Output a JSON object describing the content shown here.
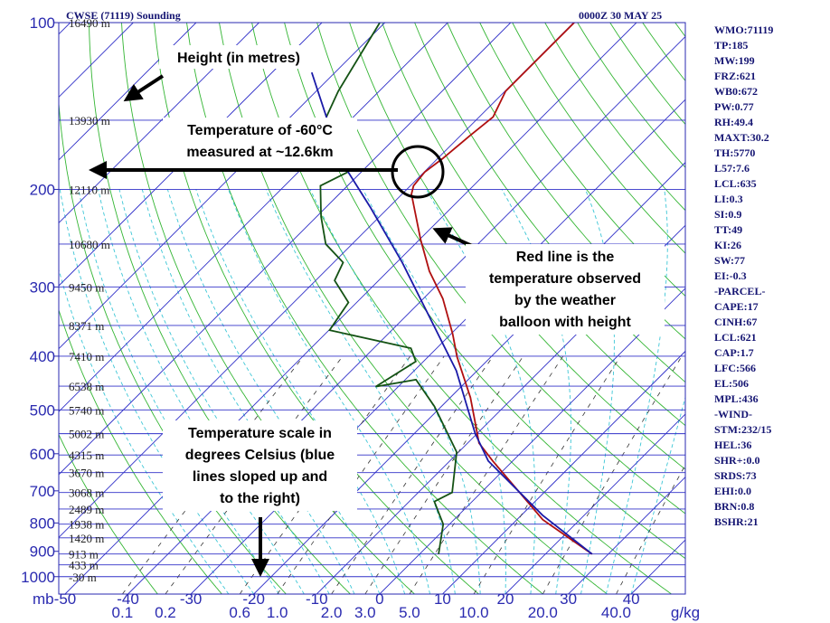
{
  "chart_data": {
    "type": "skew-t",
    "title": "CWSE (71119) Sounding",
    "date": "0000Z 30 MAY 25",
    "ylabel": "mb",
    "mixing_ratio_unit": "g/kg",
    "log_y": true,
    "skew": true,
    "xlim": [
      -51,
      48.6
    ],
    "ylim": [
      1075,
      100
    ],
    "xticks": [
      -50,
      -40,
      -30,
      -20,
      -10,
      0,
      10,
      20,
      30,
      40
    ],
    "yticks": [
      100,
      200,
      300,
      400,
      500,
      600,
      700,
      800,
      900,
      1000
    ],
    "mixing_ratio_ticks": [
      {
        "value": 0.1,
        "label": "0.1"
      },
      {
        "value": 0.2,
        "label": "0.2"
      },
      {
        "value": 0.6,
        "label": "0.6"
      },
      {
        "value": 1,
        "label": "1.0"
      },
      {
        "value": 2,
        "label": "2.0"
      },
      {
        "value": 3,
        "label": "3.0"
      },
      {
        "value": 5,
        "label": "5.0"
      },
      {
        "value": 10,
        "label": "10.0"
      },
      {
        "value": 20,
        "label": "20.0"
      },
      {
        "value": 40,
        "label": "40.0"
      }
    ],
    "height_ticks": [
      {
        "value": 100,
        "label": "16490 m"
      },
      {
        "value": 150,
        "label": "13930 m"
      },
      {
        "value": 200,
        "label": "12110 m"
      },
      {
        "value": 251,
        "label": "10680 m"
      },
      {
        "value": 300,
        "label": "9450 m"
      },
      {
        "value": 352,
        "label": "8371 m"
      },
      {
        "value": 400,
        "label": "7410 m"
      },
      {
        "value": 453,
        "label": "6538 m"
      },
      {
        "value": 500,
        "label": "5740 m"
      },
      {
        "value": 552,
        "label": "5002 m"
      },
      {
        "value": 603,
        "label": "4315 m"
      },
      {
        "value": 649,
        "label": "3670 m"
      },
      {
        "value": 705,
        "label": "3068 m"
      },
      {
        "value": 755,
        "label": "2489 m"
      },
      {
        "value": 804,
        "label": "1938 m"
      },
      {
        "value": 851,
        "label": "1420 m"
      },
      {
        "value": 910,
        "label": "913 m"
      },
      {
        "value": 952,
        "label": "433 m"
      },
      {
        "value": 1000,
        "label": "-30 m"
      }
    ],
    "series": [
      {
        "color": "#b01010",
        "x": [
          27.4,
          14.1,
          -3.2,
          -8.2,
          -12.5,
          -16.8,
          -25.4,
          -29.7,
          -36.9,
          -43.4,
          -49.9,
          -54.2,
          -58.5,
          -59.5,
          -59.9,
          -59.2,
          -58.5,
          -57.8,
          -59.9,
          -59.9,
          -59.9,
          -59.9
        ],
        "values": [
          910,
          789,
          618,
          574,
          522,
          475,
          401,
          365,
          315,
          281,
          246,
          224,
          204,
          197,
          186,
          176,
          160,
          148,
          133,
          130,
          114,
          100
        ]
      },
      {
        "color": "#145214",
        "x": [
          3.0,
          -1.0,
          -6.0,
          -4.6,
          -10.3,
          -21.1,
          -28.3,
          -33.6,
          -31.2,
          -34.1,
          -49.9,
          -51.3,
          -57.0,
          -58.5,
          -64.2,
          -69.3,
          -74.3,
          -72.1,
          -78.6,
          -84.3,
          -86.5,
          -90.8
        ],
        "values": [
          910,
          804,
          732,
          705,
          596,
          493,
          441,
          454,
          409,
          387,
          359,
          320,
          292,
          271,
          251,
          224,
          197,
          186,
          166,
          148,
          133,
          100
        ]
      },
      {
        "color": "#1a1aa8",
        "x": [
          27.4,
          13.4,
          -3.9,
          -10.3,
          -23.3,
          -34.1,
          -49.1,
          -62.8,
          -72.1,
          -84.3,
          -93.7
        ],
        "values": [
          910,
          775,
          618,
          552,
          425,
          352,
          271,
          216,
          186,
          148,
          123
        ]
      }
    ]
  },
  "station_info": [
    "WMO:71119",
    "TP:185",
    "MW:199",
    "FRZ:621",
    "WB0:672",
    "PW:0.77",
    "RH:49.4",
    "MAXT:30.2",
    "TH:5770",
    "L57:7.6",
    "LCL:635",
    "LI:0.3",
    "SI:0.9",
    "TT:49",
    "KI:26",
    "SW:77",
    "EI:-0.3",
    "-PARCEL-",
    "CAPE:17",
    "CINH:67",
    "LCL:621",
    "CAP:1.7",
    "LFC:566",
    "EL:506",
    "MPL:436",
    "-WIND-",
    "STM:232/15",
    "HEL:36",
    "SHR+:0.0",
    "SRDS:73",
    "EHI:0.0",
    "BRN:0.8",
    "BSHR:21"
  ],
  "annotations": [
    {
      "lines": [
        "Height (in metres)"
      ]
    },
    {
      "lines": [
        "Temperature of -60°C",
        "measured at ~12.6km"
      ]
    },
    {
      "lines": [
        "Red line is the",
        "temperature observed",
        "by the weather",
        "balloon with height"
      ]
    },
    {
      "lines": [
        "Temperature scale in",
        "degrees Celsius (blue",
        "lines sloped up and",
        "to the right)"
      ]
    }
  ]
}
